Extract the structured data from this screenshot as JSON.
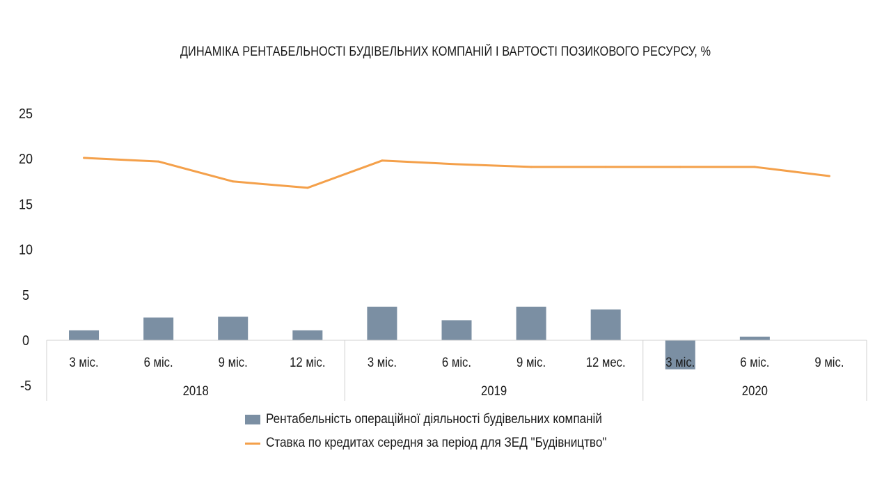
{
  "chart_data": {
    "type": "bar+line",
    "title": "ДИНАМІКА РЕНТАБЕЛЬНОСТІ БУДІВЕЛЬНИХ КОМПАНІЙ І ВАРТОСТІ ПОЗИКОВОГО РЕСУРСУ, %",
    "categories": [
      "3 міс.",
      "6 міс.",
      "9 міс.",
      "12 міс.",
      "3 міс.",
      "6 міс.",
      "9 міс.",
      "12 мес.",
      "3 міс.",
      "6 міс.",
      "9 міс."
    ],
    "groups": [
      {
        "label": "2018",
        "count": 4
      },
      {
        "label": "2019",
        "count": 4
      },
      {
        "label": "2020",
        "count": 3
      }
    ],
    "series": [
      {
        "name": "Рентабельність операційної діяльності будівельних компаній",
        "type": "bar",
        "color": "#7b8fa3",
        "values": [
          1.1,
          2.5,
          2.6,
          1.1,
          3.7,
          2.2,
          3.7,
          3.4,
          -3.2,
          0.4,
          null
        ]
      },
      {
        "name": "Ставка по кредитах  середня за період для ЗЕД \"Будівництво\"",
        "type": "line",
        "color": "#f4a04a",
        "values": [
          20.1,
          19.7,
          17.5,
          16.8,
          19.8,
          19.4,
          19.1,
          19.1,
          19.1,
          19.1,
          18.1
        ]
      }
    ],
    "yticks": [
      "25",
      "20",
      "15",
      "10",
      "5",
      "0",
      "-5"
    ],
    "ylim": [
      -5,
      25
    ],
    "grid": false,
    "legend": "bottom"
  }
}
